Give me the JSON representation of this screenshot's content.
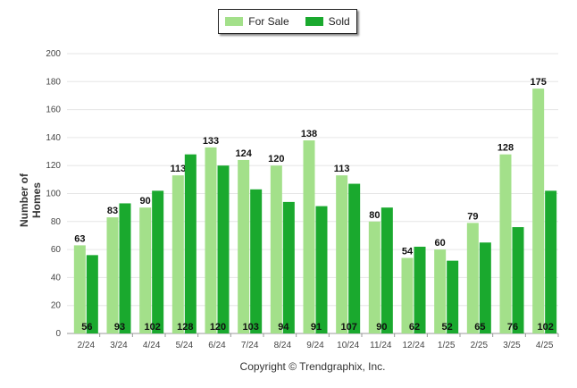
{
  "legend": {
    "for_sale_label": "For Sale",
    "sold_label": "Sold"
  },
  "copyright": "Copyright © Trendgraphix, Inc.",
  "colors": {
    "for_sale": "#a3e08a",
    "sold": "#1aa92e",
    "grid": "#e6e6e6",
    "axis": "#999999"
  },
  "chart_data": {
    "type": "bar",
    "categories": [
      "2/24",
      "3/24",
      "4/24",
      "5/24",
      "6/24",
      "7/24",
      "8/24",
      "9/24",
      "10/24",
      "11/24",
      "12/24",
      "1/25",
      "2/25",
      "3/25",
      "4/25"
    ],
    "series": [
      {
        "name": "For Sale",
        "values": [
          63,
          83,
          90,
          113,
          133,
          124,
          120,
          138,
          113,
          80,
          54,
          60,
          79,
          128,
          175
        ]
      },
      {
        "name": "Sold",
        "values": [
          56,
          93,
          102,
          128,
          120,
          103,
          94,
          91,
          107,
          90,
          62,
          52,
          65,
          76,
          102
        ]
      }
    ],
    "ylabel": "Number of Homes",
    "xlabel": "",
    "ylim": [
      0,
      200
    ],
    "yticks": [
      0,
      20,
      40,
      60,
      80,
      100,
      120,
      140,
      160,
      180,
      200
    ],
    "grid": true,
    "legend_position": "top-center"
  }
}
